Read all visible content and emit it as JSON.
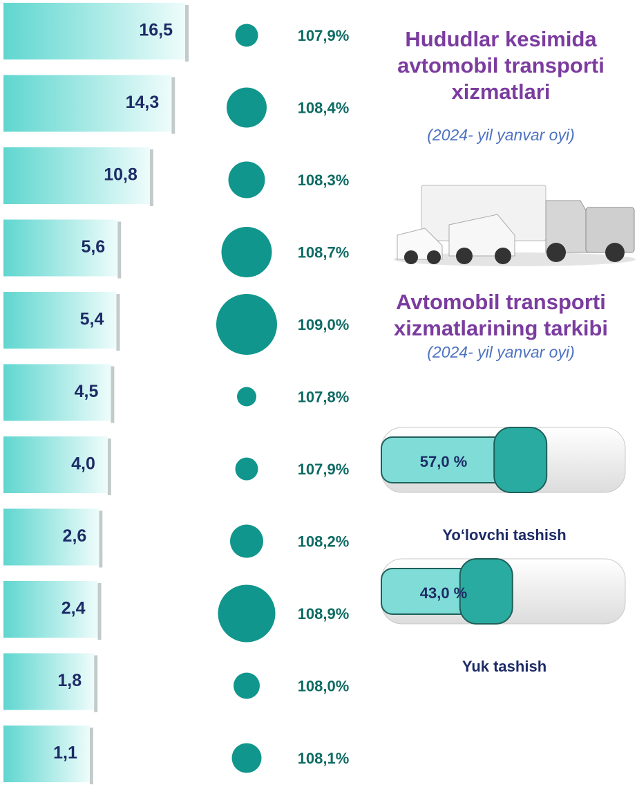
{
  "chart_data": [
    {
      "type": "bar",
      "orientation": "horizontal",
      "title": "Hududlar kesimida avtomobil transporti xizmatlari",
      "subtitle": "(2024- yil yanvar oyi)",
      "values": [
        16.5,
        14.3,
        10.8,
        5.6,
        5.4,
        4.5,
        4.0,
        2.6,
        2.4,
        1.8,
        1.1
      ],
      "value_labels": [
        "16,5",
        "14,3",
        "10,8",
        "5,6",
        "5,4",
        "4,5",
        "4,0",
        "2,6",
        "2,4",
        "1,8",
        "1,1"
      ],
      "color": "#5fd6cf"
    },
    {
      "type": "bubble",
      "values": [
        107.9,
        108.4,
        108.3,
        108.7,
        109.0,
        107.8,
        107.9,
        108.2,
        108.9,
        108.0,
        108.1
      ],
      "value_labels": [
        "107,9%",
        "108,4%",
        "108,3%",
        "108,7%",
        "109,0%",
        "107,8%",
        "107,9%",
        "108,2%",
        "108,9%",
        "108,0%",
        "108,1%"
      ],
      "color": "#10968c"
    },
    {
      "type": "share",
      "title": "Avtomobil transporti xizmatlarining tarkibi",
      "subtitle": "(2024- yil yanvar oyi)",
      "categories": [
        "Yo‘lovchi tashish",
        "Yuk tashish"
      ],
      "values": [
        57.0,
        43.0
      ],
      "value_labels": [
        "57,0 %",
        "43,0 %"
      ],
      "color": "#2aaba2"
    }
  ]
}
